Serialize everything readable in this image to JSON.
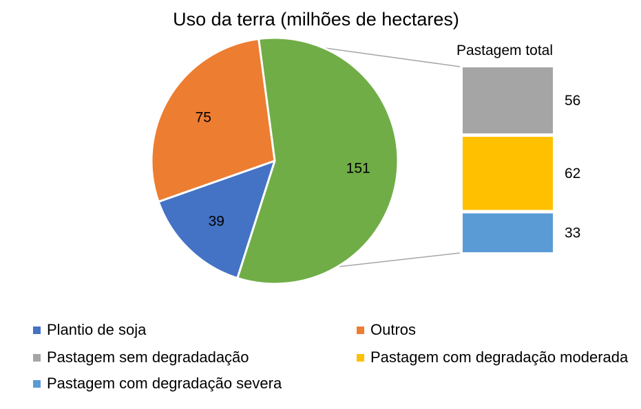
{
  "chart_data": {
    "type": "pie",
    "title": "Uso da terra (milhões de hectares)",
    "breakout_title": "Pastagem total",
    "slices": [
      {
        "label": "Pastagem total",
        "value": 151,
        "color": "#70ad47"
      },
      {
        "label": "Plantio de soja",
        "value": 39,
        "color": "#4472c4"
      },
      {
        "label": "Outros",
        "value": 75,
        "color": "#ed7d31"
      }
    ],
    "breakout": [
      {
        "label": "Pastagem sem degradadação",
        "value": 56,
        "color": "#a5a5a5"
      },
      {
        "label": "Pastagem com degradação moderada",
        "value": 62,
        "color": "#ffc000"
      },
      {
        "label": "Pastagem com degradação severa",
        "value": 33,
        "color": "#5b9bd5"
      }
    ],
    "legend": [
      {
        "label": "Plantio de soja",
        "color": "#4472c4"
      },
      {
        "label": "Outros",
        "color": "#ed7d31"
      },
      {
        "label": "Pastagem sem degradadação",
        "color": "#a5a5a5"
      },
      {
        "label": "Pastagem com degradação moderada",
        "color": "#ffc000"
      },
      {
        "label": "Pastagem com degradação severa",
        "color": "#5b9bd5"
      }
    ]
  }
}
